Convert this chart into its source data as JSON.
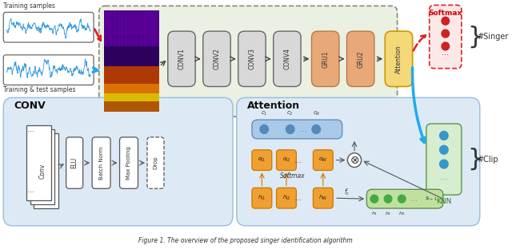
{
  "title": "Figure 1. The overview of the proposed singer identification algorithm",
  "bg_color": "#ffffff",
  "light_green_bg": "#eaf0e2",
  "light_blue_bg": "#ddeaf5",
  "conv_labels": [
    "CONV1",
    "CONV2",
    "CONV3",
    "CONV4"
  ],
  "gru_labels": [
    "GRU1",
    "GRU2"
  ],
  "attention_label": "Attention",
  "softmax_label": "Softmax",
  "knn_label": "KNN",
  "singer_label": "#Singer",
  "clip_label": "#Clip",
  "training_label": "Training samples",
  "train_test_label": "Training & test samples",
  "gray_box": "#d8d8d8",
  "orange_box": "#e8a878",
  "yellow_box": "#f5d878",
  "softmax_bg": "#fde8e8",
  "knn_bg": "#d8ecd0",
  "alpha_orange": "#f0a030",
  "blue_dot_color": "#3399cc",
  "red_dot_color": "#cc2222",
  "green_dot_color": "#44aa44"
}
